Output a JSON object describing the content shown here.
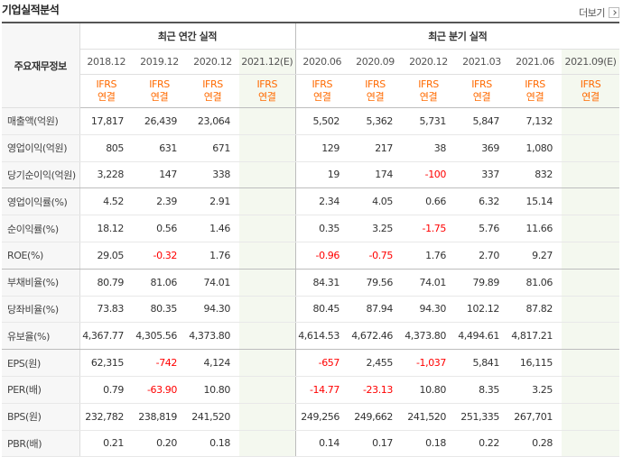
{
  "header": {
    "title": "기업실적분석",
    "more_label": "더보기"
  },
  "table": {
    "row_header_label": "주요재무정보",
    "annual_group_label": "최근 연간 실적",
    "quarter_group_label": "최근 분기 실적",
    "periods": [
      {
        "date": "2018.12",
        "estimate": false
      },
      {
        "date": "2019.12",
        "estimate": false
      },
      {
        "date": "2020.12",
        "estimate": false
      },
      {
        "date": "2021.12(E)",
        "estimate": true
      },
      {
        "date": "2020.06",
        "estimate": false
      },
      {
        "date": "2020.09",
        "estimate": false
      },
      {
        "date": "2020.12",
        "estimate": false
      },
      {
        "date": "2021.03",
        "estimate": false
      },
      {
        "date": "2021.06",
        "estimate": false
      },
      {
        "date": "2021.09(E)",
        "estimate": true
      }
    ],
    "ifrs_line1": "IFRS",
    "ifrs_line2": "연결",
    "rows": [
      {
        "label": "매출액(억원)",
        "values": [
          "17,817",
          "26,439",
          "23,064",
          "",
          "5,502",
          "5,362",
          "5,731",
          "5,847",
          "7,132",
          ""
        ]
      },
      {
        "label": "영업이익(억원)",
        "values": [
          "805",
          "631",
          "671",
          "",
          "129",
          "217",
          "38",
          "369",
          "1,080",
          ""
        ]
      },
      {
        "label": "당기순이익(억원)",
        "values": [
          "3,228",
          "147",
          "338",
          "",
          "19",
          "174",
          "-100",
          "337",
          "832",
          ""
        ]
      },
      {
        "label": "영업이익률(%)",
        "values": [
          "4.52",
          "2.39",
          "2.91",
          "",
          "2.34",
          "4.05",
          "0.66",
          "6.32",
          "15.14",
          ""
        ]
      },
      {
        "label": "순이익률(%)",
        "values": [
          "18.12",
          "0.56",
          "1.46",
          "",
          "0.35",
          "3.25",
          "-1.75",
          "5.76",
          "11.66",
          ""
        ]
      },
      {
        "label": "ROE(%)",
        "values": [
          "29.05",
          "-0.32",
          "1.76",
          "",
          "-0.96",
          "-0.75",
          "1.76",
          "2.70",
          "9.27",
          ""
        ]
      },
      {
        "label": "부채비율(%)",
        "values": [
          "80.79",
          "81.06",
          "74.01",
          "",
          "84.31",
          "79.56",
          "74.01",
          "79.89",
          "81.06",
          ""
        ]
      },
      {
        "label": "당좌비율(%)",
        "values": [
          "73.83",
          "80.35",
          "94.30",
          "",
          "80.45",
          "87.94",
          "94.30",
          "102.12",
          "87.82",
          ""
        ]
      },
      {
        "label": "유보율(%)",
        "values": [
          "4,367.77",
          "4,305.56",
          "4,373.80",
          "",
          "4,614.53",
          "4,672.46",
          "4,373.80",
          "4,494.61",
          "4,817.21",
          ""
        ]
      },
      {
        "label": "EPS(원)",
        "values": [
          "62,315",
          "-742",
          "4,124",
          "",
          "-657",
          "2,455",
          "-1,037",
          "5,841",
          "16,115",
          ""
        ]
      },
      {
        "label": "PER(배)",
        "values": [
          "0.79",
          "-63.90",
          "10.80",
          "",
          "-14.77",
          "-23.13",
          "10.80",
          "8.35",
          "3.25",
          ""
        ]
      },
      {
        "label": "BPS(원)",
        "values": [
          "232,782",
          "238,819",
          "241,520",
          "",
          "249,256",
          "249,662",
          "241,520",
          "251,335",
          "267,701",
          ""
        ]
      },
      {
        "label": "PBR(배)",
        "values": [
          "0.21",
          "0.20",
          "0.18",
          "",
          "0.14",
          "0.17",
          "0.18",
          "0.22",
          "0.28",
          ""
        ]
      }
    ]
  },
  "colors": {
    "negative": "#ff0000",
    "ifrs": "#ff6a00",
    "estimate_bg": "#f4f8ef"
  }
}
